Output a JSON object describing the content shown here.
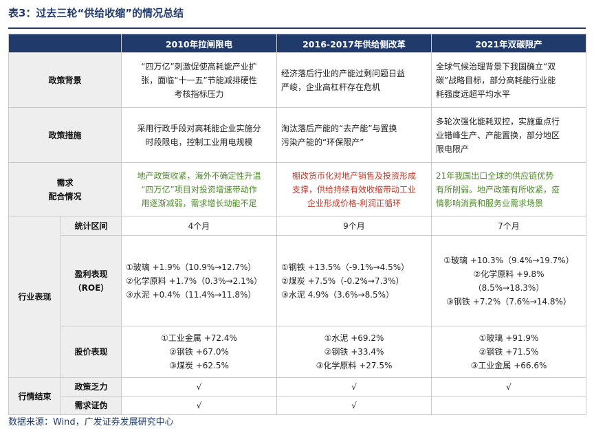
{
  "title": "表3：过去三轮“供给收缩”的情况总结",
  "headers": [
    "2010年拉闸限电",
    "2016-2017年供给侧改革",
    "2021年双碳限产"
  ],
  "rows": {
    "background": {
      "label": "政策背景",
      "cells": [
        [
          "“四万亿”刺激促使高耗能产业扩",
          "张，面临“十一五”节能减排硬性",
          "考核指标压力"
        ],
        [
          "经济落后行业的产能过剩问题日益",
          "严峻，企业高杠杆存在危机"
        ],
        [
          "全球气候治理背景下我国确立“双",
          "碳”战略目标，部分高耗能行业能",
          "耗强度远超平均水平"
        ]
      ]
    },
    "measures": {
      "label": "政策措施",
      "cells": [
        [
          "采用行政手段对高耗能企业实施分",
          "时段限电，控制工业用电规模"
        ],
        [
          "淘汰落后产能的“去产能”与置换",
          "污染产能的“环保限产”"
        ],
        [
          "多轮次强化能耗双控，实施重点行",
          "业错峰生产、产能置换，部分地区",
          "限电限产"
        ]
      ]
    },
    "demand": {
      "label_lines": [
        "需求",
        "配合情况"
      ],
      "cells": [
        [
          "地产政策收紧，海外不确定性升温",
          "“四万亿”项目对投资增速带动作",
          "用逐渐减弱，需求增长动能不足"
        ],
        [
          "棚改货币化对地产销售及投资形成",
          "支撑，供给持续有效收缩带动工业",
          "企业形成价格-利润正循环"
        ],
        [
          "21年我国出口全球的供应链优势",
          "有所削弱。地产政策有所收紧，疫",
          "情影响消费和服务业需求场景"
        ]
      ]
    },
    "industry": {
      "group_label": "行业表现",
      "stat": {
        "label": "统计区间",
        "cells": [
          "4个月",
          "9个月",
          "7个月"
        ]
      },
      "roe": {
        "label_lines": [
          "盈利表现",
          "（ROE）"
        ],
        "cells": [
          [
            "①玻璃  +1.9%（10.9%→12.7%）",
            "②化学原料  +1.7%（0.3%→2.1%）",
            "③水泥  +0.4%（11.4%→11.8%）"
          ],
          [
            "①钢铁  +13.5%（-9.1%→4.5%）",
            "②煤炭  +7.5%（-0.2%→7.3%）",
            "③水泥  4.9%（3.6%→8.5%）"
          ],
          [
            "①玻璃  +10.3%（9.4%→19.7%）",
            "②化学原料  +9.8%",
            "（8.5%→18.3%）",
            "③钢铁  +7.2%（7.6%→14.8%）"
          ]
        ]
      },
      "price": {
        "label": "股价表现",
        "cells": [
          [
            "①工业金属  +72.4%",
            "②钢铁  +67.0%",
            "③煤炭  +62.5%"
          ],
          [
            "①水泥  +69.2%",
            "②钢铁  +33.4%",
            "③化学原料  +27.5%"
          ],
          [
            "①玻璃  +91.9%",
            "②钢铁  +71.5%",
            "③工业金属  +66.6%"
          ]
        ]
      }
    },
    "end": {
      "group_label": "行情结束",
      "policy": {
        "label": "政策乏力",
        "cells": [
          "√",
          "√",
          "√"
        ]
      },
      "demand": {
        "label": "需求证伪",
        "cells": [
          "√",
          "√",
          ""
        ]
      }
    }
  },
  "source": "数据来源：Wind，广发证券发展研究中心",
  "colors": {
    "header_bg": "#1f3a6b",
    "green_text": "#4e8a2a",
    "red_text": "#c0392b",
    "label_shade": "#eeeeee"
  }
}
